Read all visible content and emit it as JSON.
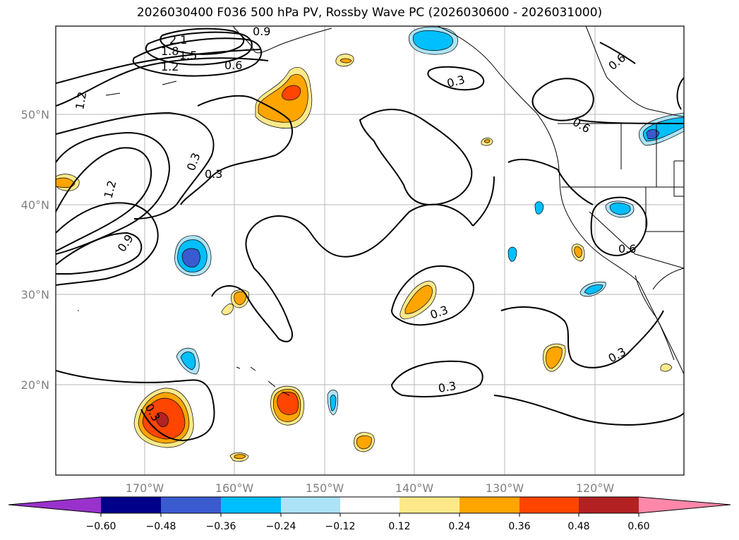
{
  "title": "2026030400 F036 500 hPa PV, Rossby Wave PC (2026030600 - 2026031000)",
  "axes": {
    "lon_labels": [
      "170°W",
      "160°W",
      "150°W",
      "140°W",
      "130°W",
      "120°W"
    ],
    "lat_labels": [
      "50°N",
      "40°N",
      "30°N",
      "20°N"
    ]
  },
  "colorbar": {
    "ticks": [
      "−0.60",
      "−0.48",
      "−0.36",
      "−0.24",
      "−0.12",
      "0.12",
      "0.24",
      "0.36",
      "0.48",
      "0.60"
    ],
    "colors": {
      "under": "#9932cc",
      "bins": [
        "#00008b",
        "#3a5bd0",
        "#00bfff",
        "#ade3f7",
        "#ffffff",
        "#fde98a",
        "#ffa500",
        "#ff4500",
        "#b22222"
      ],
      "over": "#ff88aa"
    }
  },
  "contour_labels": [
    "2.1",
    "1.8",
    "1.5",
    "1.2",
    "0.9",
    "0.6",
    "0.3",
    "1.2",
    "1.2",
    "0.9",
    "0.3",
    "0.3",
    "0.3",
    "0.3",
    "0.3",
    "0.3",
    "0.6",
    "0.6",
    "0.6"
  ]
}
